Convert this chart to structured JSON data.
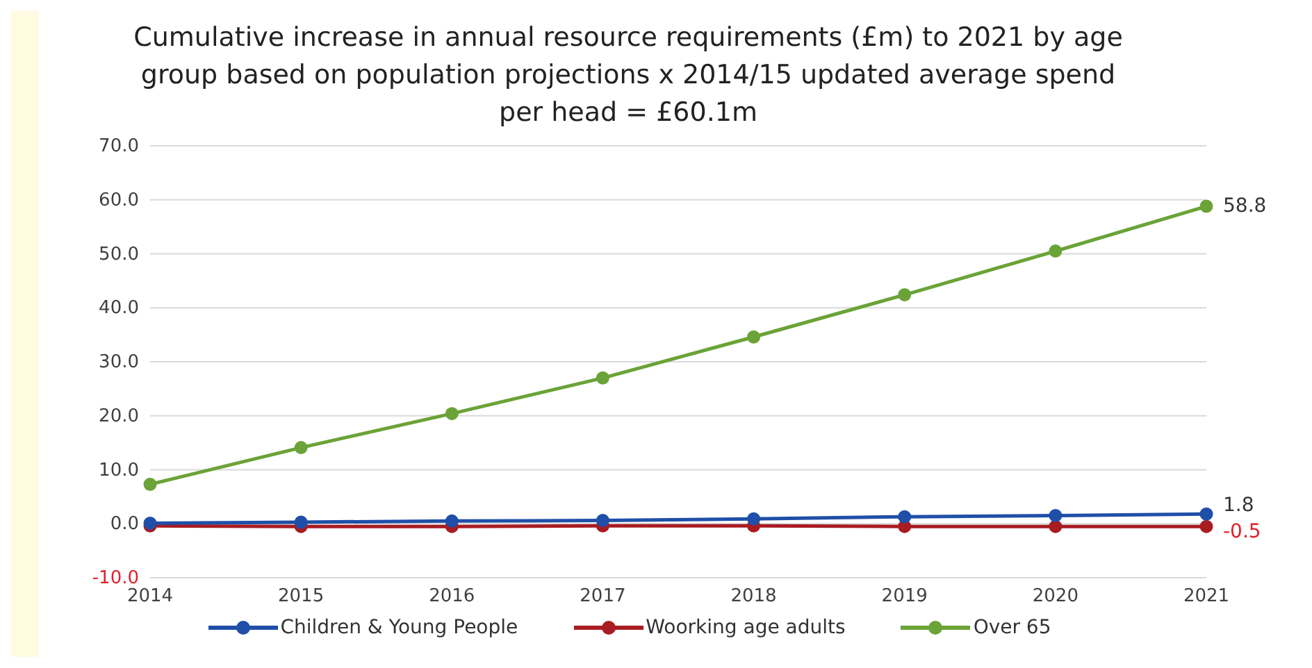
{
  "chart_data": {
    "type": "line",
    "title": "Cumulative increase in annual resource requirements (£m) to 2021 by age group based on population projections x 2014/15 updated average spend per head = £60.1m",
    "categories": [
      "2014",
      "2015",
      "2016",
      "2017",
      "2018",
      "2019",
      "2020",
      "2021"
    ],
    "series": [
      {
        "name": "Children & Young People",
        "color": "#1f4fa8",
        "values": [
          0.1,
          0.3,
          0.5,
          0.6,
          0.9,
          1.3,
          1.5,
          1.8
        ],
        "value_labels": [
          null,
          null,
          null,
          null,
          null,
          null,
          null,
          "1.8"
        ]
      },
      {
        "name": "Woorking age adults",
        "color": "#a81c22",
        "values": [
          -0.4,
          -0.5,
          -0.5,
          -0.4,
          -0.4,
          -0.5,
          -0.5,
          -0.5
        ],
        "value_labels": [
          null,
          null,
          null,
          null,
          null,
          null,
          null,
          "-0.5"
        ]
      },
      {
        "name": "Over 65",
        "color": "#6aa337",
        "values": [
          7.3,
          14.1,
          20.4,
          27.0,
          34.6,
          42.4,
          50.5,
          58.8
        ],
        "value_labels": [
          null,
          null,
          null,
          null,
          null,
          null,
          null,
          "58.8"
        ]
      }
    ],
    "ylim": [
      -10,
      70
    ],
    "yticks": [
      {
        "value": -10,
        "label": "-10.0"
      },
      {
        "value": 0,
        "label": "0.0"
      },
      {
        "value": 10,
        "label": "10.0"
      },
      {
        "value": 20,
        "label": "20.0"
      },
      {
        "value": 30,
        "label": "30.0"
      },
      {
        "value": 40,
        "label": "40.0"
      },
      {
        "value": 50,
        "label": "50.0"
      },
      {
        "value": 60,
        "label": "60.0"
      },
      {
        "value": 70,
        "label": "70.0"
      }
    ],
    "grid": "y",
    "legend": "bottom",
    "marker": "circle",
    "line_style": "solid"
  }
}
